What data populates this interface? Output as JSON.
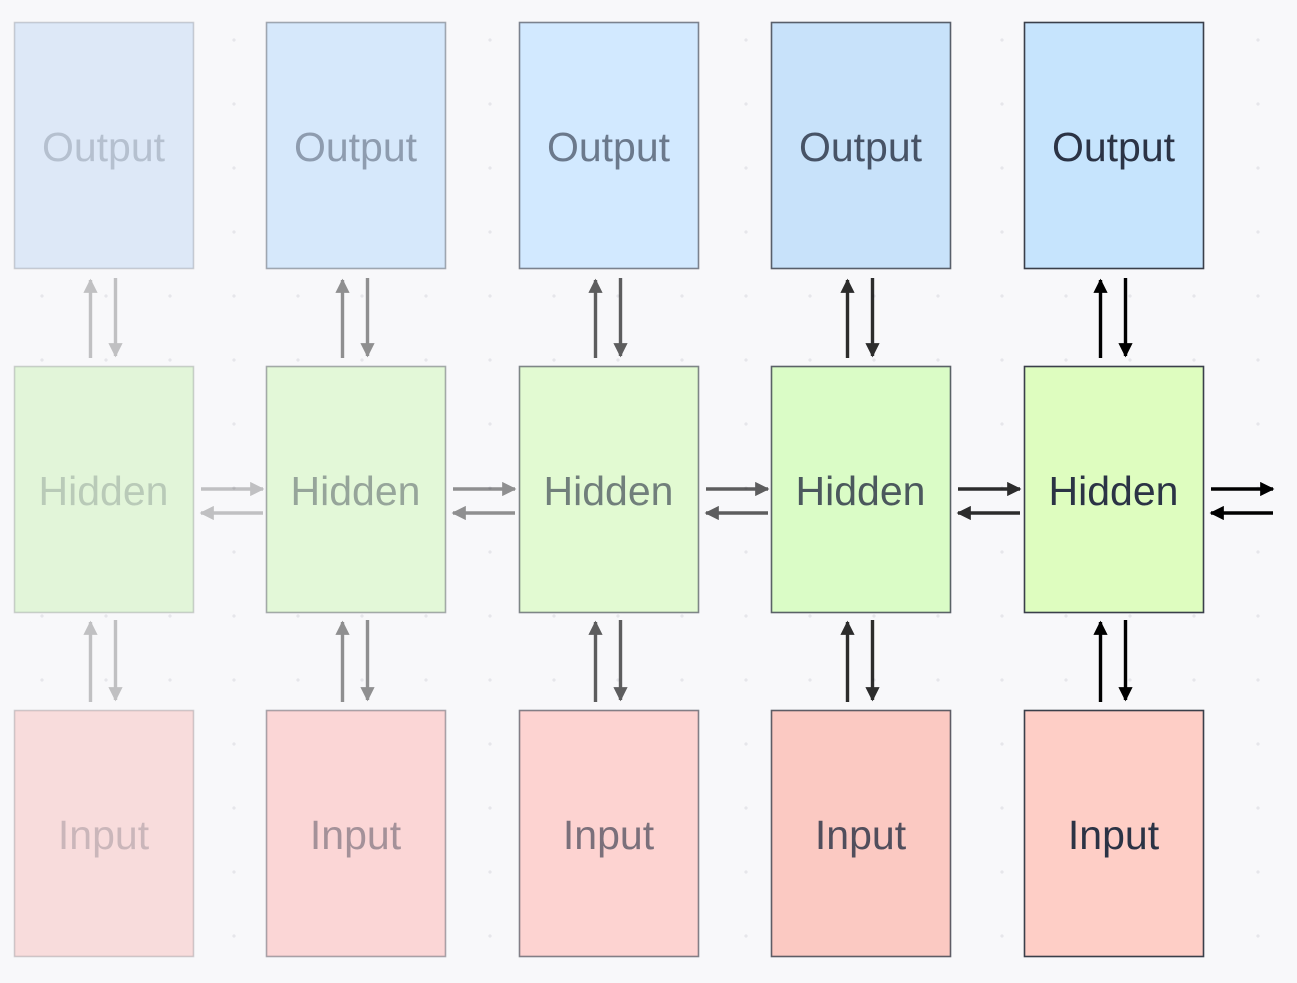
{
  "layers": [
    {
      "key": "output",
      "label": "Output"
    },
    {
      "key": "hidden",
      "label": "Hidden"
    },
    {
      "key": "input",
      "label": "Input"
    }
  ],
  "columns": [
    {
      "opacity": 0.22,
      "colors": {
        "output": "#dde8f7",
        "hidden": "#e2f5d9",
        "input": "#f8dcdc"
      }
    },
    {
      "opacity": 0.42,
      "colors": {
        "output": "#d6e8fb",
        "hidden": "#e3f8d8",
        "input": "#fbd6d6"
      }
    },
    {
      "opacity": 0.62,
      "colors": {
        "output": "#d2e9ff",
        "hidden": "#e2fad2",
        "input": "#fdd3d1"
      }
    },
    {
      "opacity": 0.82,
      "colors": {
        "output": "#c8e2fa",
        "hidden": "#dafcc6",
        "input": "#fbc9c2"
      }
    },
    {
      "opacity": 1.0,
      "colors": {
        "output": "#c6e4fd",
        "hidden": "#defdbf",
        "input": "#fecec6"
      }
    }
  ],
  "colors": {
    "border": "#3a3f4a",
    "text": "#2b3345",
    "arrow": "#000000",
    "background": "#f8f8fa"
  }
}
